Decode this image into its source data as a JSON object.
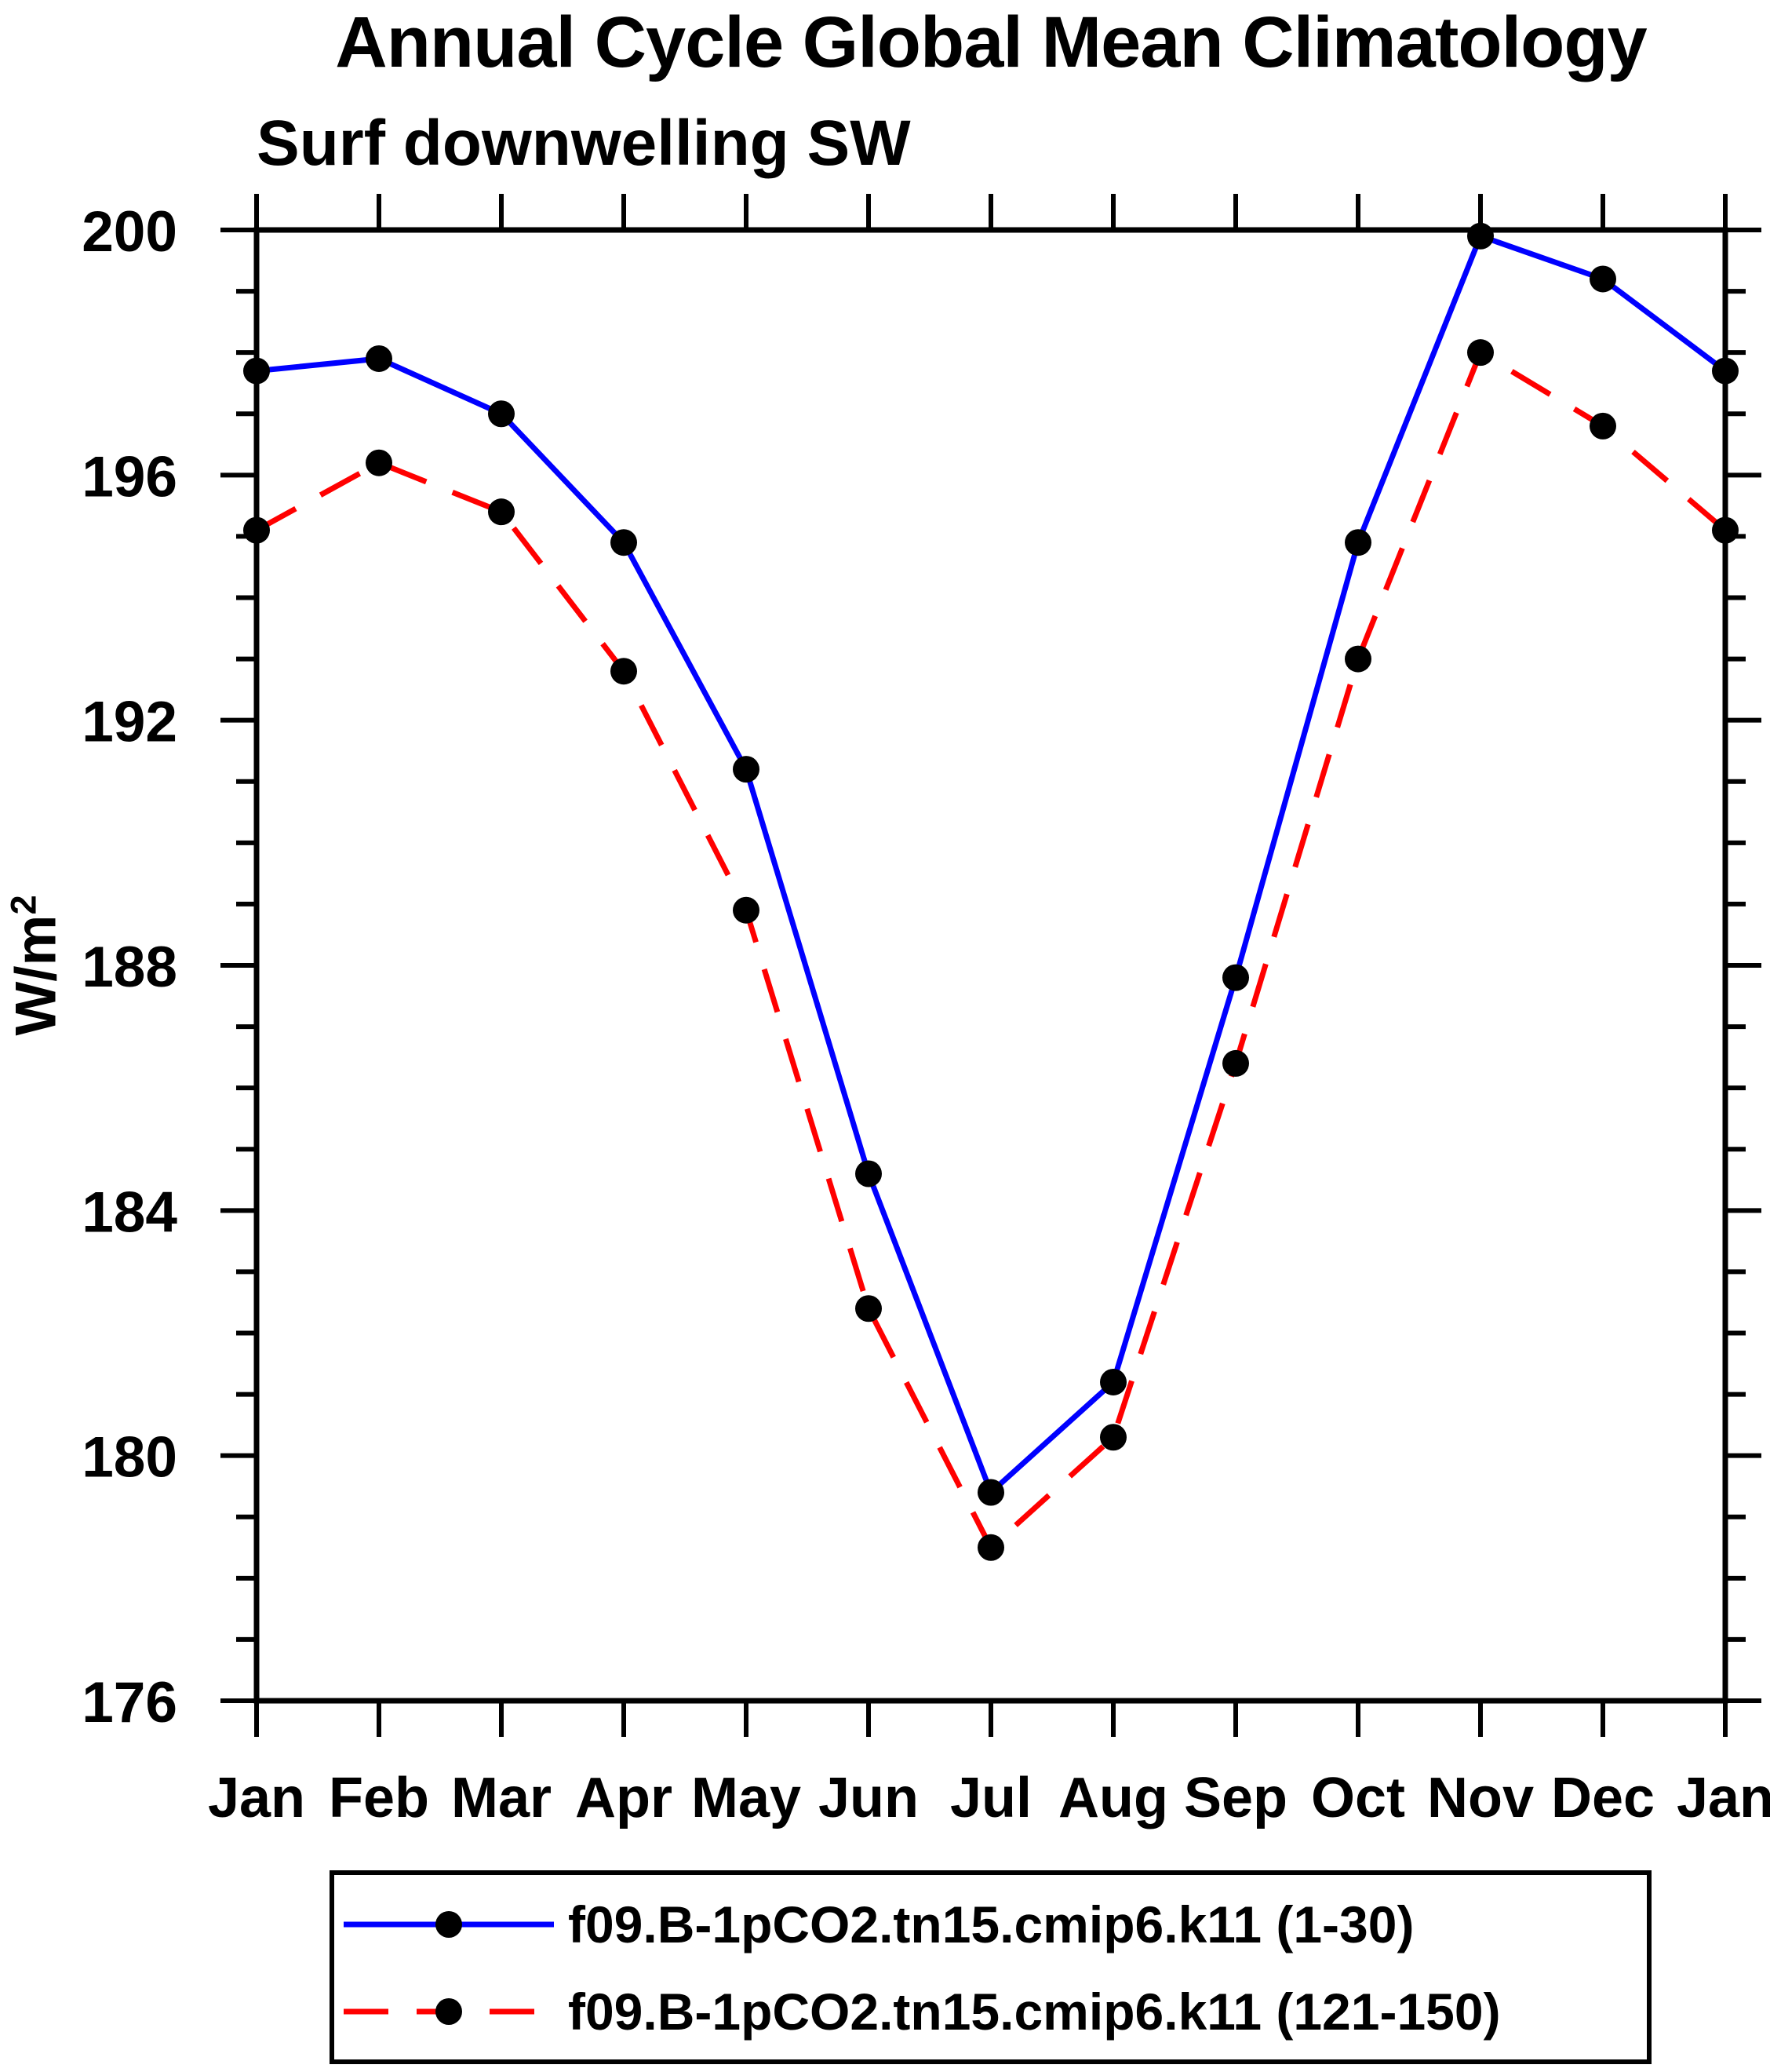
{
  "page": {
    "background": "#ffffff"
  },
  "chart_data": {
    "type": "line",
    "title": "Annual Cycle Global Mean Climatology",
    "subtitle": "Surf downwelling SW",
    "ylabel": "W/m²",
    "ylabel_base": "W/m",
    "ylabel_sup": "2",
    "xlabel": "",
    "categories": [
      "Jan",
      "Feb",
      "Mar",
      "Apr",
      "May",
      "Jun",
      "Jul",
      "Aug",
      "Sep",
      "Oct",
      "Nov",
      "Dec",
      "Jan"
    ],
    "ylim": [
      176,
      200
    ],
    "y_major_ticks": [
      176,
      180,
      184,
      188,
      192,
      196,
      200
    ],
    "y_minor_step": 1,
    "grid": false,
    "legend_position": "bottom",
    "marker_color": "#000000",
    "axis_color": "#000000",
    "series": [
      {
        "name": "f09.B-1pCO2.tn15.cmip6.k11 (1-30)",
        "color": "#0000ff",
        "style": "solid",
        "marker": "circle",
        "values": [
          197.7,
          197.9,
          197.0,
          194.9,
          191.2,
          184.6,
          179.4,
          181.2,
          187.8,
          194.9,
          199.9,
          199.2,
          197.7
        ]
      },
      {
        "name": "f09.B-1pCO2.tn15.cmip6.k11 (121-150)",
        "color": "#ff0000",
        "style": "dashed",
        "marker": "circle",
        "values": [
          195.1,
          196.2,
          195.4,
          192.8,
          188.9,
          182.4,
          178.5,
          180.3,
          186.4,
          193.0,
          198.0,
          196.8,
          195.1
        ]
      }
    ]
  }
}
